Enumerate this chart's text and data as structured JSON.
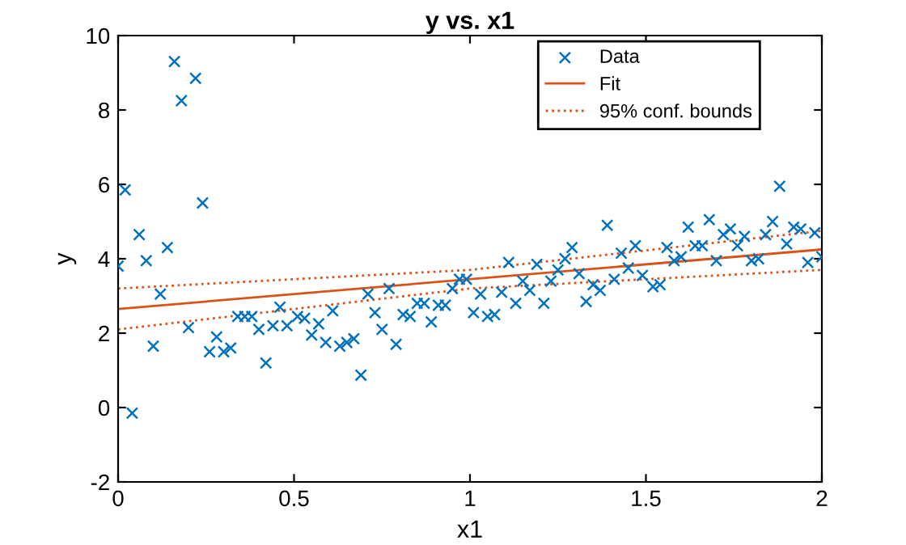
{
  "chart_data": {
    "type": "scatter",
    "title": "y vs. x1",
    "xlabel": "x1",
    "ylabel": "y",
    "x": [
      0,
      0.02,
      0.04,
      0.06,
      0.08,
      0.1,
      0.12,
      0.14,
      0.16,
      0.18,
      0.2,
      0.22,
      0.24,
      0.26,
      0.28,
      0.3,
      0.32,
      0.34,
      0.36,
      0.38,
      0.4,
      0.42,
      0.44,
      0.46,
      0.48,
      0.51,
      0.53,
      0.55,
      0.57,
      0.59,
      0.61,
      0.63,
      0.65,
      0.67,
      0.69,
      0.71,
      0.73,
      0.75,
      0.77,
      0.79,
      0.81,
      0.83,
      0.85,
      0.87,
      0.89,
      0.91,
      0.93,
      0.95,
      0.97,
      0.99,
      1.01,
      1.03,
      1.05,
      1.07,
      1.09,
      1.11,
      1.13,
      1.15,
      1.17,
      1.19,
      1.21,
      1.23,
      1.25,
      1.27,
      1.29,
      1.31,
      1.33,
      1.35,
      1.37,
      1.39,
      1.41,
      1.43,
      1.45,
      1.47,
      1.49,
      1.52,
      1.54,
      1.56,
      1.58,
      1.6,
      1.62,
      1.64,
      1.66,
      1.68,
      1.7,
      1.72,
      1.74,
      1.76,
      1.78,
      1.8,
      1.82,
      1.84,
      1.86,
      1.88,
      1.9,
      1.92,
      1.94,
      1.96,
      1.98,
      2
    ],
    "series": [
      {
        "name": "Data",
        "color": "#0072bd",
        "marker": "cross",
        "values": [
          3.8,
          5.85,
          -0.15,
          4.65,
          3.95,
          1.65,
          3.05,
          4.3,
          9.3,
          8.25,
          2.15,
          8.85,
          5.5,
          1.5,
          1.9,
          1.5,
          1.6,
          2.45,
          2.45,
          2.45,
          2.1,
          1.2,
          2.2,
          2.7,
          2.2,
          2.45,
          2.4,
          1.95,
          2.25,
          1.75,
          2.6,
          1.65,
          1.75,
          1.85,
          0.87,
          3.05,
          2.55,
          2.1,
          3.2,
          1.7,
          2.5,
          2.45,
          2.8,
          2.8,
          2.3,
          2.75,
          2.75,
          3.2,
          3.45,
          3.45,
          2.55,
          3.05,
          2.45,
          2.5,
          3.1,
          3.9,
          2.8,
          3.4,
          3.15,
          3.85,
          2.8,
          3.4,
          3.7,
          4.0,
          4.3,
          3.6,
          2.85,
          3.3,
          3.15,
          4.9,
          3.45,
          4.15,
          3.75,
          4.35,
          3.55,
          3.25,
          3.3,
          4.3,
          3.95,
          4.05,
          4.85,
          4.35,
          4.35,
          5.05,
          3.95,
          4.65,
          4.8,
          4.35,
          4.6,
          3.95,
          4.0,
          4.65,
          5.0,
          5.95,
          4.4,
          4.85,
          4.8,
          3.9,
          4.7,
          4.05
        ]
      },
      {
        "name": "Fit",
        "type": "line",
        "color": "#d95319",
        "line_style": "solid",
        "x": [
          0,
          2
        ],
        "values": [
          2.65,
          4.25
        ]
      },
      {
        "name": "95% conf. bounds",
        "type": "line",
        "color": "#d95319",
        "line_style": "dotted",
        "x": [
          0,
          1,
          2
        ],
        "values": [
          3.2,
          3.7,
          4.75
        ]
      },
      {
        "type": "line",
        "color": "#d95319",
        "line_style": "dotted",
        "x": [
          0,
          1,
          2
        ],
        "values": [
          2.1,
          3.2,
          3.7
        ]
      }
    ],
    "xlim": [
      0,
      2
    ],
    "xticks": [
      0,
      0.5,
      1,
      1.5,
      2
    ],
    "ylim": [
      -2,
      10
    ],
    "yticks": [
      -2,
      0,
      2,
      4,
      6,
      8,
      10
    ],
    "grid": false,
    "legend": "top right"
  }
}
